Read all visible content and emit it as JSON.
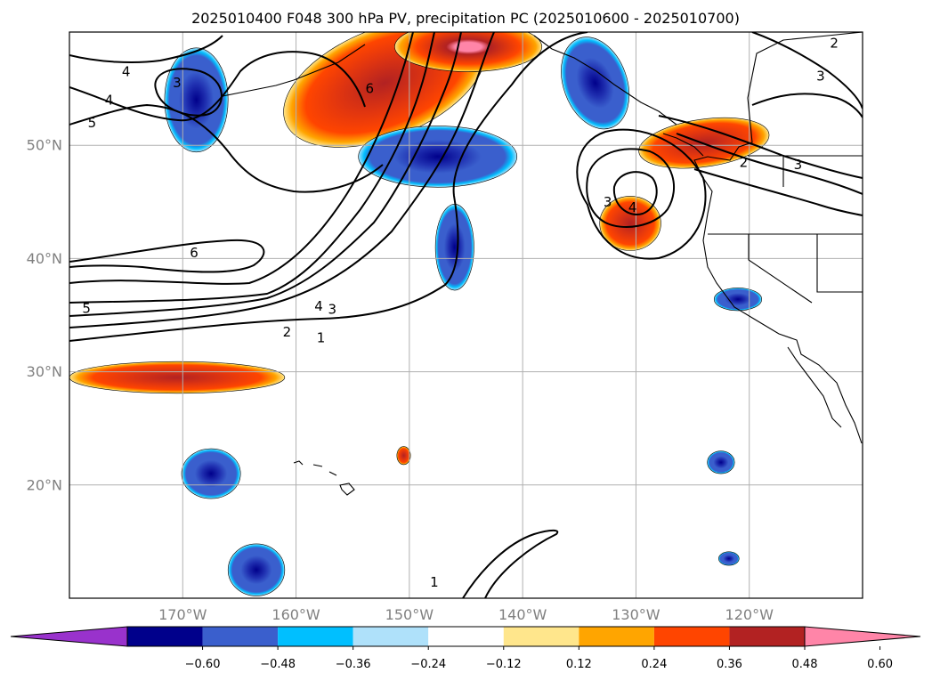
{
  "chart_data": {
    "type": "heatmap",
    "title": "2025010400 F048 300 hPa PV, precipitation PC (2025010600 - 2025010700)",
    "xlim": [
      180,
      110
    ],
    "ylim": [
      10,
      60
    ],
    "x_tick_labels": [
      "170°W",
      "160°W",
      "150°W",
      "140°W",
      "130°W",
      "120°W"
    ],
    "x_ticks": [
      170,
      160,
      150,
      140,
      130,
      120
    ],
    "y_tick_labels": [
      "20°N",
      "30°N",
      "40°N",
      "50°N"
    ],
    "y_ticks": [
      20,
      30,
      40,
      50
    ],
    "grid": true,
    "colorbar": {
      "orientation": "horizontal",
      "extend": "both",
      "tick_labels": [
        "−0.60",
        "−0.48",
        "−0.36",
        "−0.24",
        "−0.12",
        "0.12",
        "0.24",
        "0.36",
        "0.48",
        "0.60"
      ],
      "colors": [
        "#9932cc",
        "#00008b",
        "#3a5fcd",
        "#00bfff",
        "#afe1fa",
        "#ffffff",
        "#ffe68c",
        "#ffa500",
        "#ff4500",
        "#b22222",
        "#ff85a8"
      ]
    },
    "contour_labels": [
      {
        "text": "4",
        "lon": 175,
        "lat": 56.5
      },
      {
        "text": "3",
        "lon": 170.5,
        "lat": 55.5
      },
      {
        "text": "4",
        "lon": 176.5,
        "lat": 54
      },
      {
        "text": "5",
        "lon": 178,
        "lat": 52
      },
      {
        "text": "6",
        "lon": 153.5,
        "lat": 55
      },
      {
        "text": "6",
        "lon": 169,
        "lat": 40.5
      },
      {
        "text": "5",
        "lon": 178.5,
        "lat": 35.6
      },
      {
        "text": "4",
        "lon": 158,
        "lat": 35.8
      },
      {
        "text": "3",
        "lon": 156.8,
        "lat": 35.5
      },
      {
        "text": "2",
        "lon": 160.8,
        "lat": 33.5
      },
      {
        "text": "1",
        "lon": 157.8,
        "lat": 33
      },
      {
        "text": "3",
        "lon": 132.5,
        "lat": 45
      },
      {
        "text": "4",
        "lon": 130.3,
        "lat": 44.5
      },
      {
        "text": "2",
        "lon": 120.5,
        "lat": 48.5
      },
      {
        "text": "3",
        "lon": 115.7,
        "lat": 48.3
      },
      {
        "text": "2",
        "lon": 112.5,
        "lat": 59
      },
      {
        "text": "3",
        "lon": 113.7,
        "lat": 56.1
      },
      {
        "text": "1",
        "lon": 147.8,
        "lat": 11.4
      }
    ],
    "precip_pc_regions": [
      {
        "value": 0.44,
        "lon": 152.2,
        "lat": 55.5,
        "rlon": 9.4,
        "rlat": 4.8,
        "rot": -22
      },
      {
        "value": 0.52,
        "lon": 144.8,
        "lat": 58.7,
        "rlon": 6.5,
        "rlat": 2.2,
        "rot": 0
      },
      {
        "value": 0.44,
        "lon": 130.5,
        "lat": 43.1,
        "rlon": 2.7,
        "rlat": 2.4,
        "rot": 0
      },
      {
        "value": 0.4,
        "lon": 124,
        "lat": 50.2,
        "rlon": 5.8,
        "rlat": 2.1,
        "rot": -8
      },
      {
        "value": 0.44,
        "lon": 170.5,
        "lat": 29.5,
        "rlon": 9.5,
        "rlat": 1.4,
        "rot": 0
      },
      {
        "value": 0.4,
        "lon": 150.5,
        "lat": 22.6,
        "rlon": 0.6,
        "rlat": 0.8,
        "rot": 0
      },
      {
        "value": -0.44,
        "lon": 168.8,
        "lat": 54,
        "rlon": 2.8,
        "rlat": 4.6,
        "rot": 0
      },
      {
        "value": -0.4,
        "lon": 147.5,
        "lat": 49,
        "rlon": 7.0,
        "rlat": 2.7,
        "rot": 0
      },
      {
        "value": -0.36,
        "lon": 146,
        "lat": 41,
        "rlon": 1.7,
        "rlat": 3.8,
        "rot": 0
      },
      {
        "value": -0.4,
        "lon": 133.6,
        "lat": 55.5,
        "rlon": 2.8,
        "rlat": 4.2,
        "rot": -20
      },
      {
        "value": -0.44,
        "lon": 121,
        "lat": 36.4,
        "rlon": 2.1,
        "rlat": 1.0,
        "rot": 0
      },
      {
        "value": -0.44,
        "lon": 167.5,
        "lat": 21,
        "rlon": 2.6,
        "rlat": 2.2,
        "rot": 0
      },
      {
        "value": -0.44,
        "lon": 163.5,
        "lat": 12.5,
        "rlon": 2.5,
        "rlat": 2.3,
        "rot": 0
      },
      {
        "value": -0.36,
        "lon": 122.5,
        "lat": 22,
        "rlon": 1.2,
        "rlat": 1.0,
        "rot": 0
      },
      {
        "value": -0.36,
        "lon": 121.8,
        "lat": 13.5,
        "rlon": 0.9,
        "rlat": 0.6,
        "rot": 0
      }
    ]
  }
}
